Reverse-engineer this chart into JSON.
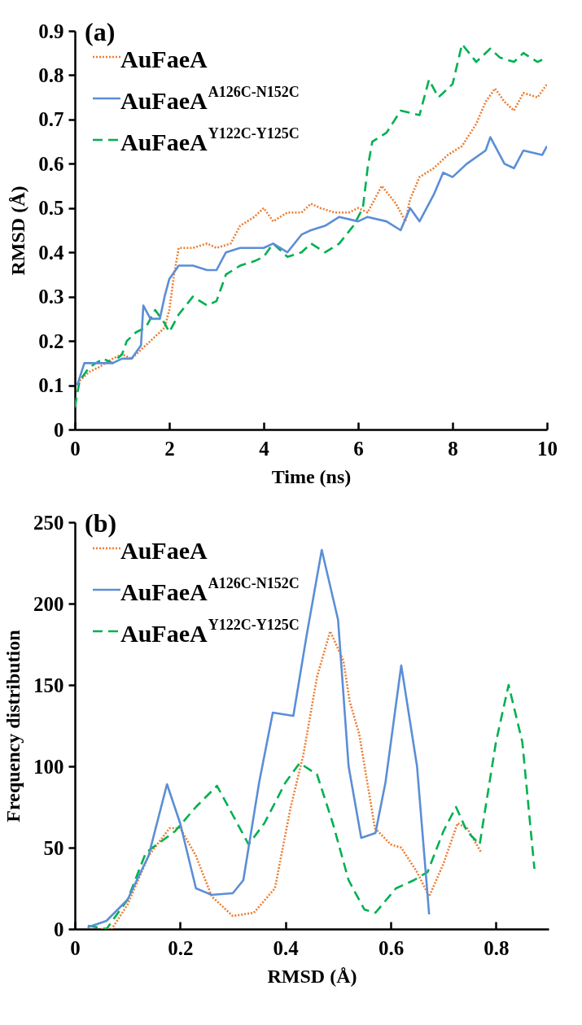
{
  "chart_data": [
    {
      "type": "line",
      "xlabel": "Time (ns)",
      "ylabel": "RMSD (Å)",
      "annotations": [
        "(a)"
      ],
      "xlim": [
        0,
        10
      ],
      "xticks": [
        0,
        2,
        4,
        6,
        8,
        10
      ],
      "ylim": [
        0,
        0.9
      ],
      "yticks": [
        0,
        0.1,
        0.2,
        0.3,
        0.4,
        0.5,
        0.6,
        0.7,
        0.8,
        0.9
      ],
      "grid": false,
      "legend": "top left",
      "series": [
        {
          "name": "AuFaeA",
          "color": "#ed7d31",
          "line_style": "dotted",
          "x": [
            0.1,
            0.3,
            0.5,
            0.8,
            1.0,
            1.2,
            1.5,
            1.7,
            1.9,
            2.0,
            2.1,
            2.2,
            2.5,
            2.8,
            3.0,
            3.3,
            3.5,
            3.8,
            4.0,
            4.2,
            4.5,
            4.8,
            5.0,
            5.2,
            5.5,
            5.8,
            6.0,
            6.2,
            6.5,
            6.8,
            7.0,
            7.1,
            7.3,
            7.6,
            7.9,
            8.2,
            8.5,
            8.7,
            8.9,
            9.1,
            9.3,
            9.5,
            9.8,
            10
          ],
          "values": [
            0.11,
            0.13,
            0.14,
            0.16,
            0.17,
            0.16,
            0.19,
            0.21,
            0.23,
            0.27,
            0.35,
            0.41,
            0.41,
            0.42,
            0.41,
            0.42,
            0.46,
            0.48,
            0.5,
            0.47,
            0.49,
            0.49,
            0.51,
            0.5,
            0.49,
            0.49,
            0.5,
            0.49,
            0.55,
            0.51,
            0.47,
            0.52,
            0.57,
            0.59,
            0.62,
            0.64,
            0.69,
            0.74,
            0.77,
            0.74,
            0.72,
            0.76,
            0.75,
            0.78
          ]
        },
        {
          "name": "AuFaeA$^{A126C-N152C}$",
          "color": "#5b8ed6",
          "line_style": "solid",
          "x": [
            0.05,
            0.2,
            0.5,
            0.8,
            1.0,
            1.2,
            1.4,
            1.45,
            1.6,
            1.8,
            1.9,
            2.0,
            2.2,
            2.5,
            2.8,
            3.0,
            3.2,
            3.5,
            4.0,
            4.2,
            4.5,
            4.8,
            5.0,
            5.3,
            5.6,
            6.0,
            6.2,
            6.6,
            6.9,
            7.1,
            7.3,
            7.6,
            7.8,
            8.0,
            8.3,
            8.7,
            8.8,
            9.1,
            9.3,
            9.5,
            9.9,
            10
          ],
          "values": [
            0.1,
            0.15,
            0.15,
            0.15,
            0.16,
            0.16,
            0.19,
            0.28,
            0.25,
            0.25,
            0.3,
            0.34,
            0.37,
            0.37,
            0.36,
            0.36,
            0.4,
            0.41,
            0.41,
            0.42,
            0.4,
            0.44,
            0.45,
            0.46,
            0.48,
            0.47,
            0.48,
            0.47,
            0.45,
            0.5,
            0.47,
            0.53,
            0.58,
            0.57,
            0.6,
            0.63,
            0.66,
            0.6,
            0.59,
            0.63,
            0.62,
            0.64
          ]
        },
        {
          "name": "AuFaeA$^{Y122C-Y125C}$",
          "color": "#00b050",
          "line_style": "dashed",
          "x": [
            0,
            0.1,
            0.3,
            0.6,
            0.8,
            1.0,
            1.1,
            1.3,
            1.5,
            1.7,
            1.9,
            2.0,
            2.2,
            2.5,
            2.8,
            3.0,
            3.2,
            3.5,
            3.8,
            4.0,
            4.2,
            4.5,
            4.8,
            5.0,
            5.3,
            5.6,
            5.9,
            6.1,
            6.2,
            6.3,
            6.6,
            6.9,
            7.3,
            7.5,
            7.7,
            8.0,
            8.2,
            8.5,
            8.8,
            9.0,
            9.3,
            9.5,
            9.8,
            10
          ],
          "values": [
            0.05,
            0.11,
            0.14,
            0.16,
            0.15,
            0.17,
            0.2,
            0.22,
            0.23,
            0.27,
            0.24,
            0.22,
            0.26,
            0.3,
            0.28,
            0.29,
            0.35,
            0.37,
            0.38,
            0.39,
            0.42,
            0.39,
            0.4,
            0.42,
            0.4,
            0.42,
            0.46,
            0.5,
            0.59,
            0.65,
            0.67,
            0.72,
            0.71,
            0.79,
            0.75,
            0.78,
            0.87,
            0.83,
            0.86,
            0.84,
            0.83,
            0.85,
            0.83,
            0.84
          ]
        }
      ]
    },
    {
      "type": "line",
      "xlabel": "RMSD (Å)",
      "ylabel": "Frequency distribution",
      "annotations": [
        "(b)"
      ],
      "xlim": [
        0,
        0.9
      ],
      "xticks": [
        0,
        0.2,
        0.4,
        0.6,
        0.8
      ],
      "ylim": [
        0,
        250
      ],
      "yticks": [
        0,
        50,
        100,
        150,
        200,
        250
      ],
      "grid": false,
      "legend": "top left",
      "series": [
        {
          "name": "AuFaeA",
          "color": "#ed7d31",
          "line_style": "dotted",
          "x": [
            0.05,
            0.07,
            0.1,
            0.14,
            0.18,
            0.2,
            0.23,
            0.26,
            0.3,
            0.34,
            0.38,
            0.41,
            0.434,
            0.46,
            0.485,
            0.51,
            0.522,
            0.54,
            0.57,
            0.6,
            0.62,
            0.65,
            0.673,
            0.7,
            0.727,
            0.745,
            0.772
          ],
          "values": [
            0,
            0,
            15,
            45,
            62,
            62,
            45,
            20,
            8,
            10,
            25,
            75,
            107,
            155,
            183,
            165,
            140,
            120,
            62,
            52,
            50,
            35,
            20,
            40,
            65,
            62,
            47
          ]
        },
        {
          "name": "AuFaeA$^{A126C-N152C}$",
          "color": "#5b8ed6",
          "line_style": "solid",
          "x": [
            0.024,
            0.06,
            0.1,
            0.14,
            0.175,
            0.2,
            0.23,
            0.26,
            0.3,
            0.32,
            0.35,
            0.376,
            0.415,
            0.44,
            0.469,
            0.5,
            0.52,
            0.544,
            0.571,
            0.59,
            0.62,
            0.65,
            0.673
          ],
          "values": [
            1,
            5,
            18,
            45,
            89,
            65,
            25,
            21,
            22,
            30,
            90,
            133,
            131,
            180,
            233,
            190,
            100,
            56,
            59,
            90,
            162,
            100,
            9
          ]
        },
        {
          "name": "AuFaeA$^{Y122C-Y125C}$",
          "color": "#00b050",
          "line_style": "dashed",
          "x": [
            0.025,
            0.06,
            0.1,
            0.135,
            0.19,
            0.23,
            0.27,
            0.3,
            0.33,
            0.36,
            0.4,
            0.427,
            0.46,
            0.49,
            0.52,
            0.55,
            0.571,
            0.61,
            0.644,
            0.67,
            0.7,
            0.724,
            0.745,
            0.769,
            0.8,
            0.824,
            0.85,
            0.873
          ],
          "values": [
            2,
            0,
            18,
            47,
            60,
            75,
            88,
            70,
            52,
            65,
            90,
            102,
            95,
            65,
            30,
            12,
            10,
            25,
            30,
            35,
            60,
            75,
            60,
            52,
            115,
            150,
            115,
            37
          ]
        }
      ]
    }
  ]
}
